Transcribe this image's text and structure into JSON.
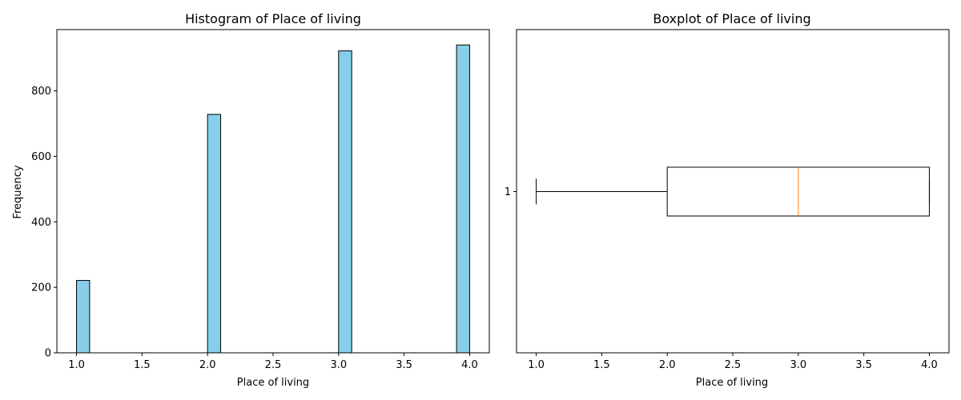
{
  "chart_data": [
    {
      "type": "bar",
      "title": "Histogram of Place of living",
      "xlabel": "Place of living",
      "ylabel": "Frequency",
      "xlim": [
        0.85,
        4.15
      ],
      "ylim": [
        0,
        987
      ],
      "xticks": [
        1.0,
        1.5,
        2.0,
        2.5,
        3.0,
        3.5,
        4.0
      ],
      "xtick_labels": [
        "1.0",
        "1.5",
        "2.0",
        "2.5",
        "3.0",
        "3.5",
        "4.0"
      ],
      "yticks": [
        0,
        200,
        400,
        600,
        800
      ],
      "ytick_labels": [
        "0",
        "200",
        "400",
        "600",
        "800"
      ],
      "bins": [
        {
          "start": 1.0,
          "end": 1.1,
          "value": 221
        },
        {
          "start": 2.0,
          "end": 2.1,
          "value": 728
        },
        {
          "start": 3.0,
          "end": 3.1,
          "value": 922
        },
        {
          "start": 3.9,
          "end": 4.0,
          "value": 940
        }
      ],
      "bar_color": "#87ceeb",
      "edge_color": "#000000",
      "grid": false
    },
    {
      "type": "boxplot",
      "title": "Boxplot of Place of living",
      "xlabel": "Place of living",
      "xlim": [
        0.85,
        4.15
      ],
      "xticks": [
        1.0,
        1.5,
        2.0,
        2.5,
        3.0,
        3.5,
        4.0
      ],
      "xtick_labels": [
        "1.0",
        "1.5",
        "2.0",
        "2.5",
        "3.0",
        "3.5",
        "4.0"
      ],
      "ytick_labels": [
        "1"
      ],
      "box": {
        "whisker_low": 1.0,
        "q1": 2.0,
        "median": 3.0,
        "q3": 4.0,
        "whisker_high": 4.0
      },
      "median_color": "#ff7f0e",
      "grid": false
    }
  ]
}
